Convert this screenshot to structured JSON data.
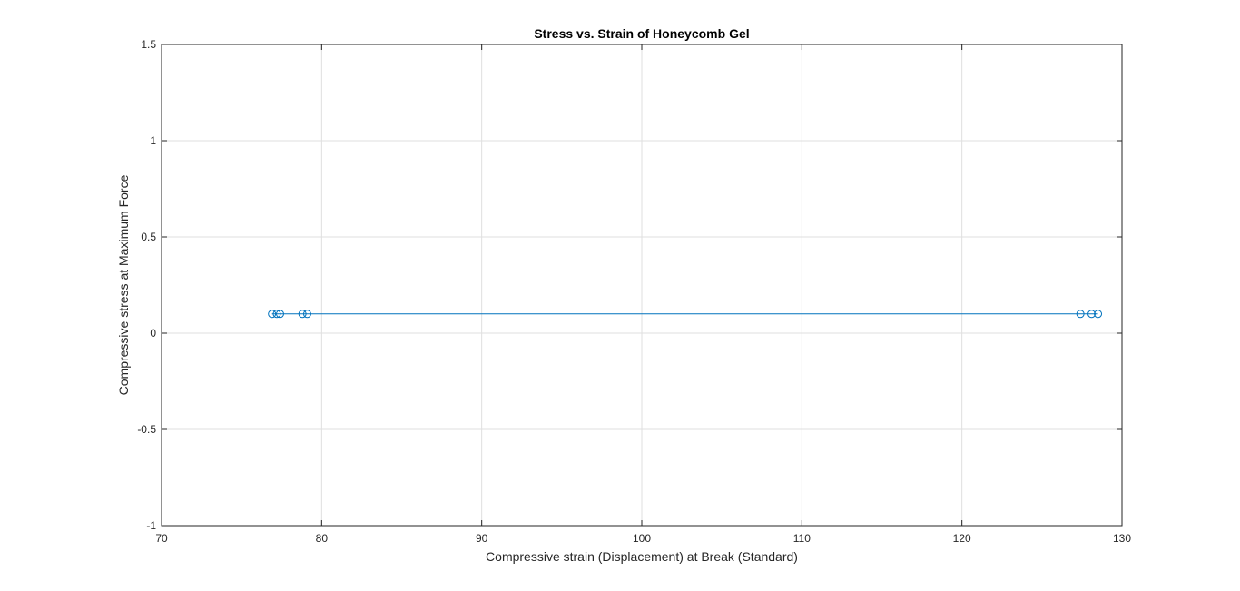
{
  "chart_data": {
    "type": "line",
    "title": "Stress vs. Strain of Honeycomb Gel",
    "xlabel": "Compressive strain (Displacement) at Break (Standard)",
    "ylabel": "Compressive stress at Maximum Force",
    "xlim": [
      70,
      130
    ],
    "ylim": [
      -1,
      1.5
    ],
    "xticks": [
      "70",
      "80",
      "90",
      "100",
      "110",
      "120",
      "130"
    ],
    "yticks": [
      "-1",
      "-0.5",
      "0",
      "0.5",
      "1",
      "1.5"
    ],
    "grid": true,
    "marker": "circle",
    "series": [
      {
        "color": "#0072bd",
        "x": [
          76.9,
          77.2,
          77.4,
          78.8,
          79.1,
          127.4,
          128.1,
          128.5
        ],
        "y": [
          0.1,
          0.1,
          0.1,
          0.1,
          0.1,
          0.1,
          0.1,
          0.1
        ]
      }
    ]
  }
}
